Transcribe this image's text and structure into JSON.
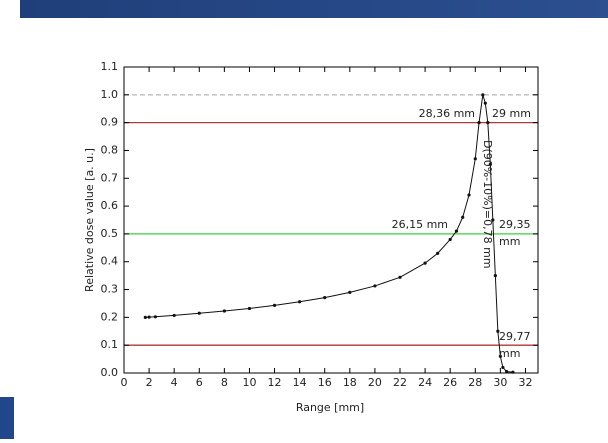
{
  "chart_data": {
    "type": "line",
    "xlabel": "Range [mm]",
    "ylabel": "Relative dose value [a. u.]",
    "xlim": [
      0,
      33
    ],
    "xticks": [
      0,
      2,
      4,
      6,
      8,
      10,
      12,
      14,
      16,
      18,
      20,
      22,
      24,
      26,
      28,
      30,
      32
    ],
    "ylim": [
      0,
      1.1
    ],
    "yticks": [
      {
        "value": 0,
        "label": "0.0"
      },
      0.1,
      0.2,
      0.3,
      0.4,
      0.5,
      0.6,
      0.7,
      0.8,
      0.9,
      {
        "value": 1,
        "label": "1.0"
      },
      1.1
    ],
    "hlines": [
      {
        "value": 1.0,
        "color": "#bbbbbb",
        "style": "dashed"
      },
      {
        "value": 0.9,
        "color": "#b03a3a",
        "style": "solid"
      },
      {
        "value": 0.5,
        "color": "#3ccf3c",
        "style": "solid"
      },
      {
        "value": 0.1,
        "color": "#b03a3a",
        "style": "solid"
      }
    ],
    "series": [
      {
        "color": "#111111",
        "x": [
          1.7,
          2,
          2.5,
          4,
          6,
          8,
          10,
          12,
          14,
          16,
          18,
          20,
          22,
          24,
          25,
          26,
          26.5,
          27,
          27.5,
          28,
          28.3,
          28.6,
          28.8,
          29.0,
          29.2,
          29.4,
          29.6,
          29.8,
          30.0,
          30.2,
          30.5,
          31
        ],
        "values": [
          0.2,
          0.201,
          0.202,
          0.207,
          0.215,
          0.223,
          0.232,
          0.243,
          0.256,
          0.271,
          0.29,
          0.313,
          0.344,
          0.395,
          0.43,
          0.48,
          0.51,
          0.56,
          0.64,
          0.77,
          0.9,
          1.0,
          0.97,
          0.9,
          0.75,
          0.55,
          0.35,
          0.15,
          0.06,
          0.02,
          0.005,
          0.003
        ]
      }
    ],
    "annotations": [
      [
        "28,36 mm"
      ],
      [
        "29 mm"
      ],
      [
        "26,15 mm"
      ],
      [
        "29,35",
        "mm"
      ],
      [
        "29,77",
        "mm"
      ],
      [
        "D(90%-10%)=0,78 mm"
      ]
    ]
  }
}
